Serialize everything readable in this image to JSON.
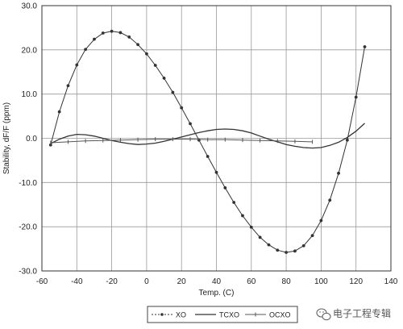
{
  "chart_data": {
    "type": "line",
    "title": "",
    "xlabel": "Temp. (C)",
    "ylabel": "Stability, dF/F (ppm)",
    "xlim": [
      -60,
      140
    ],
    "ylim": [
      -30,
      30
    ],
    "x_ticks": [
      -60,
      -40,
      -20,
      0,
      20,
      40,
      60,
      80,
      100,
      120,
      140
    ],
    "y_ticks": [
      30.0,
      20.0,
      10.0,
      0.0,
      -10.0,
      -20.0,
      -30.0
    ],
    "x_tick_labels": [
      "-60",
      "-40",
      "-20",
      "0",
      "20",
      "40",
      "60",
      "80",
      "100",
      "120",
      "140"
    ],
    "y_tick_labels": [
      "30.0",
      "20.0",
      "10.0",
      "0.0",
      "-10.0",
      "-20.0",
      "-30.0"
    ],
    "grid": true,
    "legend_position": "bottom",
    "series": [
      {
        "name": "XO",
        "marker": "dot",
        "color": "#333333",
        "x": [
          -55,
          -50,
          -45,
          -40,
          -35,
          -30,
          -25,
          -20,
          -15,
          -10,
          -5,
          0,
          5,
          10,
          15,
          20,
          25,
          30,
          35,
          40,
          45,
          50,
          55,
          60,
          65,
          70,
          75,
          80,
          85,
          90,
          95,
          100,
          105,
          110,
          115,
          120,
          125
        ],
        "y": [
          -1.5,
          6.0,
          11.9,
          16.6,
          20.1,
          22.4,
          23.8,
          24.2,
          23.9,
          22.9,
          21.2,
          19.1,
          16.5,
          13.6,
          10.4,
          6.9,
          3.3,
          -0.4,
          -4.1,
          -7.7,
          -11.2,
          -14.5,
          -17.5,
          -20.1,
          -22.4,
          -24.1,
          -25.3,
          -25.8,
          -25.5,
          -24.3,
          -22.0,
          -18.6,
          -14.0,
          -7.9,
          -0.4,
          9.3,
          20.7
        ]
      },
      {
        "name": "TCXO",
        "marker": "none",
        "color": "#333333",
        "x": [
          -55,
          -50,
          -45,
          -40,
          -35,
          -30,
          -25,
          -20,
          -15,
          -10,
          -5,
          0,
          5,
          10,
          15,
          20,
          25,
          30,
          35,
          40,
          45,
          50,
          55,
          60,
          65,
          70,
          75,
          80,
          85,
          90,
          95,
          100,
          105,
          110,
          115,
          120,
          125
        ],
        "y": [
          -1.2,
          -0.2,
          0.5,
          0.9,
          0.8,
          0.5,
          0.0,
          -0.5,
          -0.9,
          -1.2,
          -1.4,
          -1.3,
          -1.1,
          -0.7,
          -0.2,
          0.3,
          0.8,
          1.3,
          1.7,
          2.0,
          2.1,
          2.0,
          1.7,
          1.2,
          0.5,
          -0.2,
          -0.8,
          -1.4,
          -1.8,
          -2.1,
          -2.2,
          -2.1,
          -1.6,
          -0.9,
          0.2,
          1.6,
          3.4
        ]
      },
      {
        "name": "OCXO",
        "marker": "tick",
        "color": "#555555",
        "x": [
          -55,
          -45,
          -35,
          -25,
          -15,
          -5,
          5,
          15,
          25,
          35,
          45,
          55,
          65,
          75,
          85,
          95
        ],
        "y": [
          -1.0,
          -0.8,
          -0.6,
          -0.5,
          -0.4,
          -0.3,
          -0.2,
          -0.2,
          -0.2,
          -0.3,
          -0.3,
          -0.4,
          -0.5,
          -0.6,
          -0.7,
          -0.8
        ]
      }
    ]
  },
  "watermark": {
    "text": "电子工程专辑",
    "icon": "wechat-icon"
  }
}
